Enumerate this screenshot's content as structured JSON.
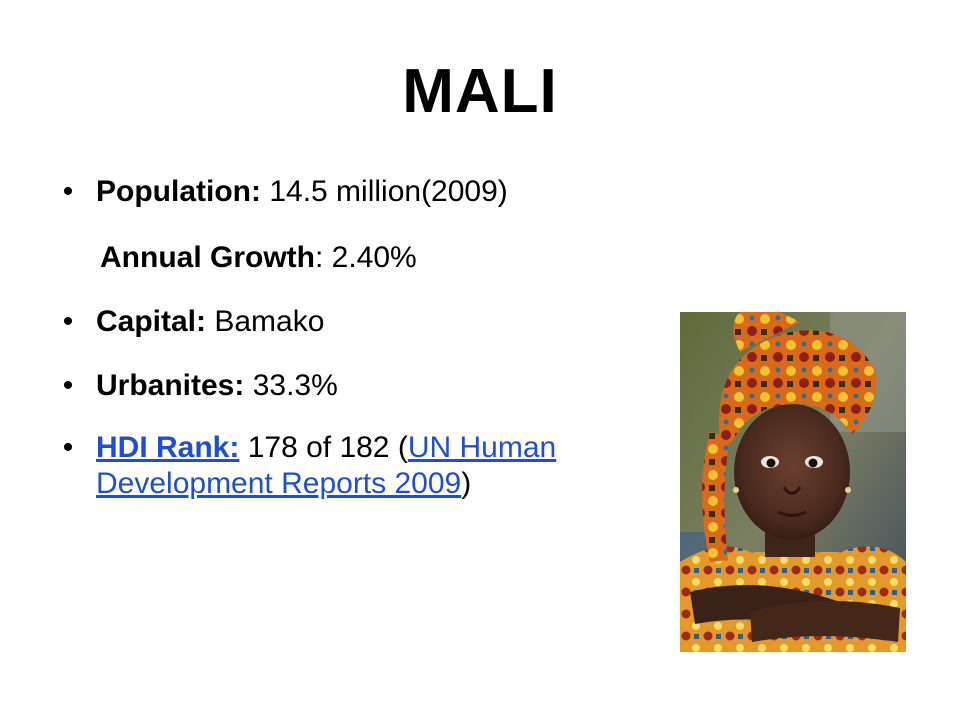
{
  "title": "MALI",
  "items": [
    {
      "bullet": "•",
      "label": "Population:",
      "value": " 14.5 million(2009)"
    },
    {
      "label": "Annual Growth",
      "sep": ": ",
      "value": "2.40%"
    },
    {
      "bullet": "•",
      "label": "Capital:",
      "value": " Bamako"
    },
    {
      "bullet": "•",
      "label": "Urbanites:",
      "value": " 33.3%"
    },
    {
      "bullet": "•",
      "link_label": "HDI Rank:",
      "value": " 178 of 182 (",
      "link_text_1": "UN Human",
      "link_text_2": "Development Reports 2009",
      "close": ")"
    }
  ],
  "colors": {
    "link": "#1f4fd1",
    "text": "#000000",
    "background": "#ffffff"
  },
  "image": {
    "subject": "photo-of-girl-in-patterned-headscarf"
  }
}
